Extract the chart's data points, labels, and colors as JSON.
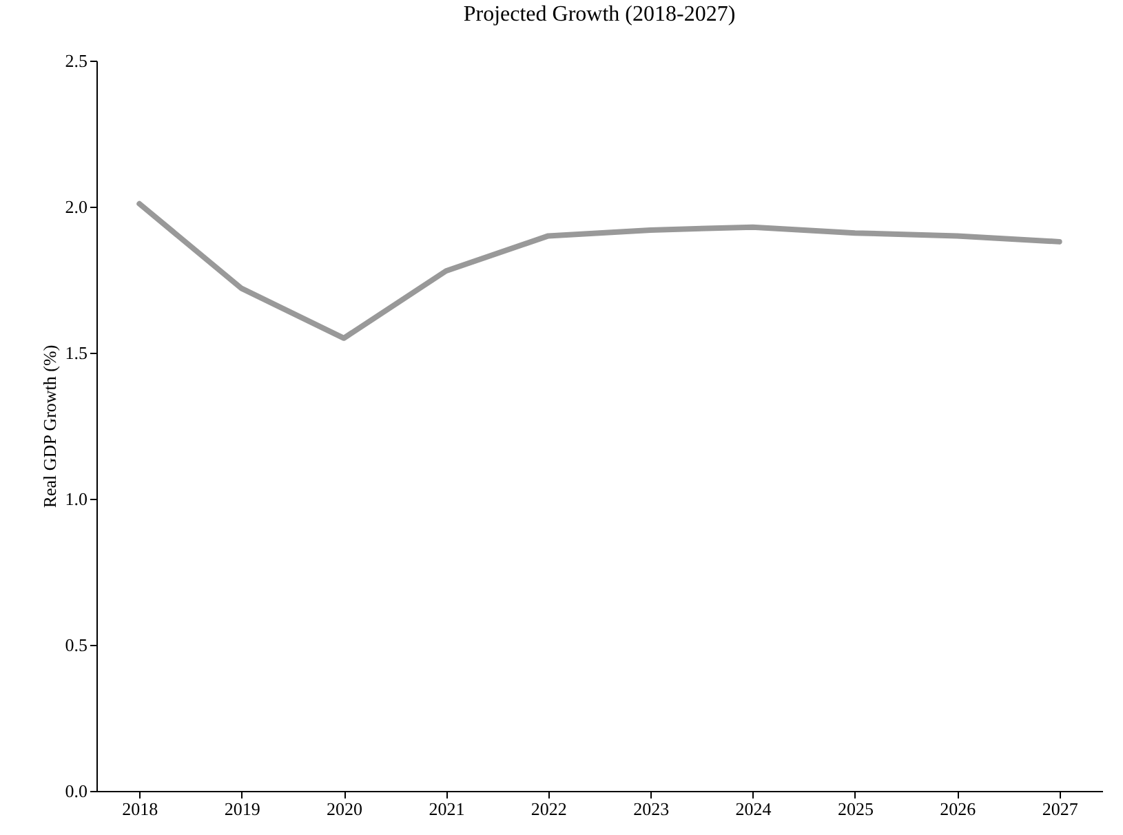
{
  "chart_data": {
    "type": "line",
    "title": "Projected Growth (2018-2027)",
    "ylabel": "Real GDP Growth (%)",
    "categories": [
      "2018",
      "2019",
      "2020",
      "2021",
      "2022",
      "2023",
      "2024",
      "2025",
      "2026",
      "2027"
    ],
    "series": [
      {
        "color": "#999999",
        "values": [
          2.01,
          1.72,
          1.55,
          1.78,
          1.9,
          1.92,
          1.93,
          1.91,
          1.9,
          1.88
        ]
      }
    ],
    "ylim": [
      0,
      2.5
    ],
    "yticks": [
      {
        "value": 0,
        "label": "0.0"
      },
      {
        "value": 0.5,
        "label": "0.5"
      },
      {
        "value": 1,
        "label": "1.0"
      },
      {
        "value": 1.5,
        "label": "1.5"
      },
      {
        "value": 2,
        "label": "2.0"
      },
      {
        "value": 2.5,
        "label": "2.5"
      }
    ],
    "grid": false,
    "marker": "none",
    "line_style": "solid"
  }
}
